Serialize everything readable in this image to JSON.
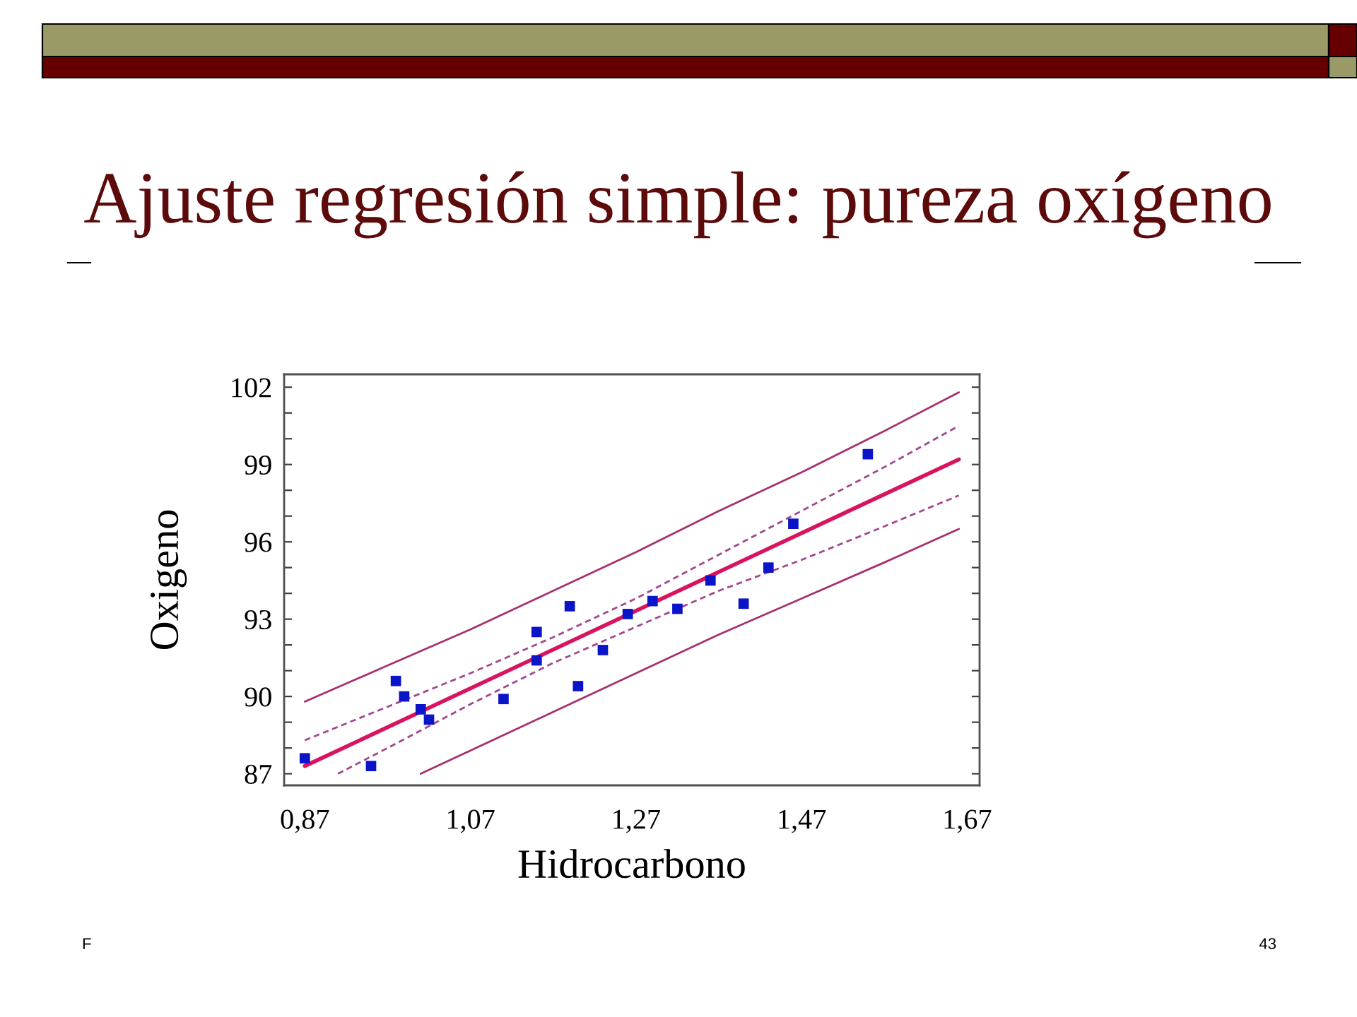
{
  "chart_data": {
    "type": "scatter",
    "title": "Ajuste regresión simple: pureza oxígeno",
    "xlabel": "Hidrocarbono",
    "ylabel": "Oxigeno",
    "marker": "square",
    "grid": false,
    "legend": false,
    "xlim": [
      0.845,
      1.685
    ],
    "xticks": [
      {
        "value": 0.87,
        "label": "0,87"
      },
      {
        "value": 1.07,
        "label": "1,07"
      },
      {
        "value": 1.27,
        "label": "1,27"
      },
      {
        "value": 1.47,
        "label": "1,47"
      },
      {
        "value": 1.67,
        "label": "1,67"
      }
    ],
    "ylim": [
      86.55,
      102.5
    ],
    "yticks": [
      87,
      {
        "value": 88,
        "label": null
      },
      {
        "value": 89,
        "label": null
      },
      90,
      {
        "value": 91,
        "label": null
      },
      {
        "value": 92,
        "label": null
      },
      93,
      {
        "value": 94,
        "label": null
      },
      {
        "value": 95,
        "label": null
      },
      96,
      {
        "value": 97,
        "label": null
      },
      {
        "value": 98,
        "label": null
      },
      99,
      {
        "value": 100,
        "label": null
      },
      {
        "value": 101,
        "label": null
      },
      102
    ],
    "series": [
      {
        "color": "#0a14c8",
        "x": [
          0.87,
          0.95,
          0.98,
          0.99,
          1.01,
          1.02,
          1.11,
          1.15,
          1.15,
          1.19,
          1.2,
          1.23,
          1.26,
          1.29,
          1.32,
          1.36,
          1.4,
          1.43,
          1.46,
          1.55
        ],
        "values": [
          87.6,
          87.3,
          90.6,
          90.0,
          89.5,
          89.1,
          89.9,
          92.5,
          91.4,
          93.5,
          90.4,
          91.8,
          93.2,
          93.7,
          93.4,
          94.5,
          93.6,
          95.0,
          96.7,
          99.4
        ]
      },
      {
        "type": "line",
        "marker": "none",
        "color": "#d81460",
        "x": [
          0.87,
          1.66
        ],
        "values": [
          87.3,
          99.2
        ]
      },
      {
        "type": "line",
        "marker": "none",
        "line_style": "dashed",
        "color": "#a04890",
        "x": [
          0.87,
          0.97,
          1.07,
          1.17,
          1.27,
          1.37,
          1.47,
          1.57,
          1.66
        ],
        "values": [
          88.3,
          89.6,
          90.9,
          92.3,
          93.8,
          95.5,
          97.2,
          98.9,
          100.5
        ]
      },
      {
        "type": "line",
        "marker": "none",
        "line_style": "dashed",
        "color": "#a04890",
        "x": [
          0.91,
          0.97,
          1.07,
          1.17,
          1.27,
          1.37,
          1.47,
          1.57,
          1.66
        ],
        "values": [
          87.0,
          88.0,
          89.7,
          91.3,
          92.7,
          94.1,
          95.3,
          96.6,
          97.8
        ]
      },
      {
        "type": "line",
        "marker": "none",
        "color": "#a8306e",
        "x": [
          0.87,
          0.97,
          1.07,
          1.17,
          1.27,
          1.37,
          1.47,
          1.57,
          1.66
        ],
        "values": [
          89.8,
          91.2,
          92.6,
          94.1,
          95.6,
          97.2,
          98.7,
          100.3,
          101.8
        ]
      },
      {
        "type": "line",
        "marker": "none",
        "color": "#a8306e",
        "x": [
          1.01,
          1.07,
          1.17,
          1.27,
          1.37,
          1.47,
          1.57,
          1.66
        ],
        "values": [
          87.0,
          87.9,
          89.4,
          90.9,
          92.4,
          93.8,
          95.2,
          96.5
        ]
      }
    ],
    "annotations": [
      "F",
      "43"
    ]
  }
}
